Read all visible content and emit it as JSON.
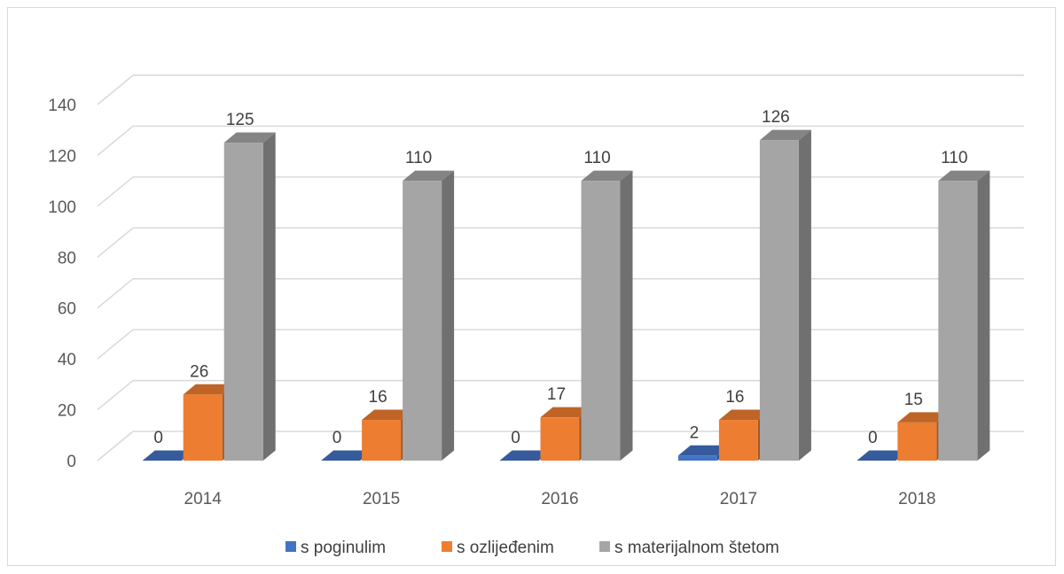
{
  "chart_data": {
    "type": "bar",
    "categories": [
      "2014",
      "2015",
      "2016",
      "2017",
      "2018"
    ],
    "series": [
      {
        "name": "s poginulim",
        "values": [
          0,
          0,
          0,
          2,
          0
        ],
        "color": "#4472c4"
      },
      {
        "name": "s ozlijeđenim",
        "values": [
          26,
          16,
          17,
          16,
          15
        ],
        "color": "#ed7d31"
      },
      {
        "name": "s materijalnom štetom",
        "values": [
          125,
          110,
          110,
          126,
          110
        ],
        "color": "#a5a5a5"
      }
    ],
    "y_ticks": [
      "0",
      "20",
      "40",
      "60",
      "80",
      "100",
      "120",
      "140"
    ],
    "ylim": [
      0,
      140
    ],
    "grid": true,
    "legend_position": "bottom",
    "style": "3d-clustered-column"
  }
}
